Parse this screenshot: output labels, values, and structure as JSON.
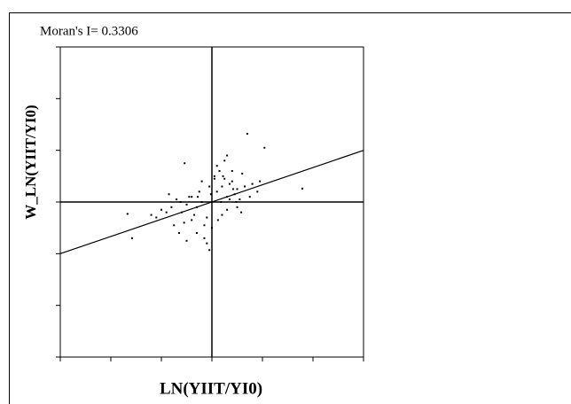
{
  "chart_data": {
    "type": "scatter",
    "title": "Moran's I= 0.3306",
    "x_label": "LN(YIIT/YI0)",
    "y_label": "W_LN(YIIT/YI0)",
    "xlim": [
      -3,
      3
    ],
    "ylim": [
      -3,
      3
    ],
    "xticks": [
      -3,
      -2,
      -1,
      0,
      1,
      2,
      3
    ],
    "yticks": [
      -3,
      -2,
      -1,
      0,
      1,
      2,
      3
    ],
    "color": "#000000",
    "x": [
      0.7,
      -0.54,
      -1.67,
      -1.58,
      1.79,
      -0.05,
      1.04,
      0.1,
      0.2,
      0.3,
      0.4,
      0.5,
      -0.2,
      -0.3,
      -0.4,
      -0.5,
      -0.6,
      -0.7,
      -0.8,
      0.05,
      0.15,
      0.25,
      0.35,
      0.45,
      0.55,
      0.65,
      -0.1,
      -0.15,
      -0.25,
      -0.35,
      -0.45,
      -0.55,
      -0.65,
      -0.9,
      -1.0,
      -1.1,
      -1.2,
      0.8,
      0.9,
      0.6,
      0.3,
      0.2,
      -0.05,
      0.0,
      0.1,
      -0.2,
      -0.3,
      0.4,
      0.5,
      -0.4,
      0.25,
      0.35,
      -0.15,
      0.75,
      0.95,
      -0.75,
      -0.85,
      0.12,
      -0.02,
      0.18,
      0.42,
      -0.28,
      -0.62,
      0.58,
      0.3,
      -0.1,
      0.05,
      -0.5,
      0.22,
      0.48
    ],
    "y": [
      1.32,
      0.75,
      -0.23,
      -0.7,
      0.26,
      -0.93,
      1.05,
      0.2,
      0.3,
      0.1,
      0.4,
      0.25,
      0.0,
      -0.1,
      0.1,
      -0.05,
      -0.2,
      0.05,
      -0.1,
      0.5,
      0.6,
      0.45,
      0.35,
      0.15,
      0.05,
      0.3,
      -0.3,
      -0.45,
      0.2,
      -0.25,
      0.1,
      -0.4,
      -0.6,
      -0.2,
      -0.15,
      -0.3,
      -0.25,
      0.35,
      0.2,
      0.55,
      -0.15,
      -0.25,
      0.3,
      -0.5,
      0.7,
      0.4,
      -0.6,
      0.6,
      -0.1,
      -0.35,
      0.8,
      0.05,
      -0.7,
      0.1,
      0.4,
      -0.45,
      0.15,
      -0.35,
      0.15,
      0.0,
      0.25,
      0.1,
      0.0,
      -0.2,
      0.9,
      -0.8,
      0.45,
      -0.75,
      0.5,
      0.0
    ],
    "regression": {
      "x": [
        -3,
        3
      ],
      "y": [
        -1.0,
        1.0
      ]
    }
  }
}
